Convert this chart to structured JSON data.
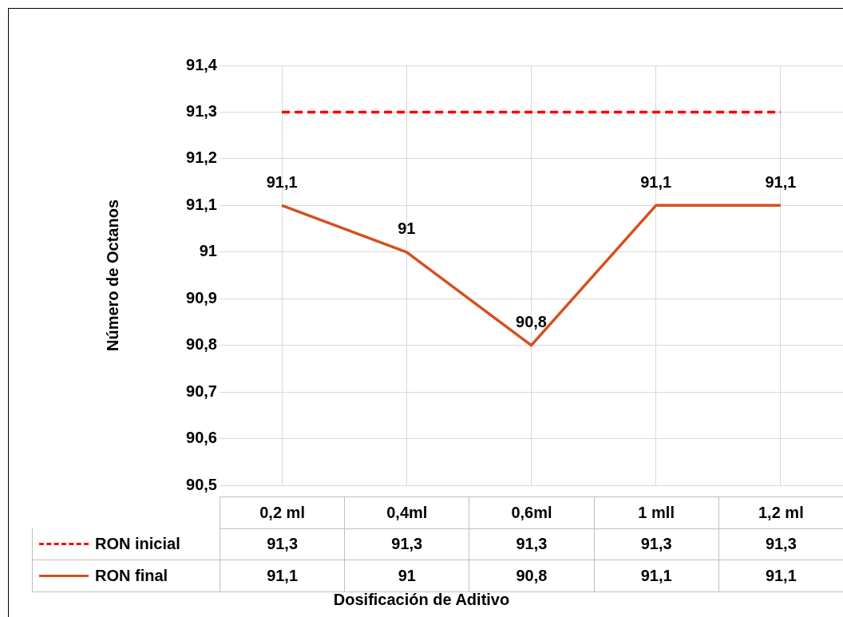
{
  "chart_data": {
    "type": "line",
    "ylabel": "Número de Octanos",
    "xlabel": "Dosificación de Aditivo",
    "categories": [
      "0,2 ml",
      "0,4ml",
      "0,6ml",
      "1 mll",
      "1,2 ml"
    ],
    "series": [
      {
        "name": "RON inicial",
        "color": "#ff0000",
        "line_style": "dashed",
        "values": [
          91.3,
          91.3,
          91.3,
          91.3,
          91.3
        ],
        "value_labels": [
          "91,3",
          "91,3",
          "91,3",
          "91,3",
          "91,3"
        ]
      },
      {
        "name": "RON final",
        "color": "#d5501f",
        "line_style": "solid",
        "values": [
          91.1,
          91.0,
          90.8,
          91.1,
          91.1
        ],
        "value_labels": [
          "91,1",
          "91",
          "90,8",
          "91,1",
          "91,1"
        ],
        "data_labels": true
      }
    ],
    "ylim": [
      90.5,
      91.4
    ],
    "yticks": [
      {
        "value": 90.5,
        "label": "90,5"
      },
      {
        "value": 90.6,
        "label": "90,6"
      },
      {
        "value": 90.7,
        "label": "90,7"
      },
      {
        "value": 90.8,
        "label": "90,8"
      },
      {
        "value": 90.9,
        "label": "90,9"
      },
      {
        "value": 91,
        "label": "91"
      },
      {
        "value": 91.1,
        "label": "91,1"
      },
      {
        "value": 91.2,
        "label": "91,2"
      },
      {
        "value": 91.3,
        "label": "91,3"
      },
      {
        "value": 91.4,
        "label": "91,4"
      }
    ],
    "grid": true,
    "legend": "bottom",
    "marker": "none"
  }
}
